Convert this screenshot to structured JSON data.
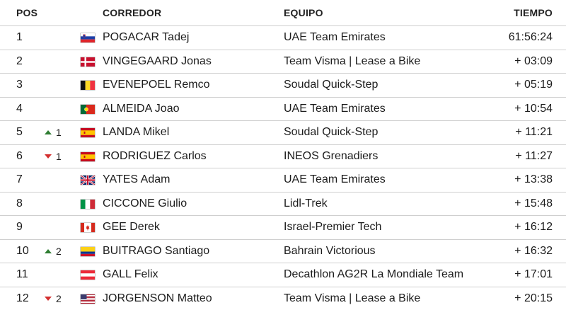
{
  "headers": {
    "pos": "POS",
    "rider": "CORREDOR",
    "team": "EQUIPO",
    "time": "TIEMPO"
  },
  "rows": [
    {
      "pos": "1",
      "change": "",
      "change_dir": "",
      "flag": "slovenia",
      "rider": "POGACAR Tadej",
      "team": "UAE Team Emirates",
      "time": "61:56:24"
    },
    {
      "pos": "2",
      "change": "",
      "change_dir": "",
      "flag": "denmark",
      "rider": "VINGEGAARD Jonas",
      "team": "Team Visma | Lease a Bike",
      "time": "+ 03:09"
    },
    {
      "pos": "3",
      "change": "",
      "change_dir": "",
      "flag": "belgium",
      "rider": "EVENEPOEL Remco",
      "team": "Soudal Quick-Step",
      "time": "+ 05:19"
    },
    {
      "pos": "4",
      "change": "",
      "change_dir": "",
      "flag": "portugal",
      "rider": "ALMEIDA Joao",
      "team": "UAE Team Emirates",
      "time": "+ 10:54"
    },
    {
      "pos": "5",
      "change": "1",
      "change_dir": "up",
      "flag": "spain",
      "rider": "LANDA Mikel",
      "team": "Soudal Quick-Step",
      "time": "+ 11:21"
    },
    {
      "pos": "6",
      "change": "1",
      "change_dir": "down",
      "flag": "spain",
      "rider": "RODRIGUEZ Carlos",
      "team": "INEOS Grenadiers",
      "time": "+ 11:27"
    },
    {
      "pos": "7",
      "change": "",
      "change_dir": "",
      "flag": "uk",
      "rider": "YATES Adam",
      "team": "UAE Team Emirates",
      "time": "+ 13:38"
    },
    {
      "pos": "8",
      "change": "",
      "change_dir": "",
      "flag": "italy",
      "rider": "CICCONE Giulio",
      "team": "Lidl-Trek",
      "time": "+ 15:48"
    },
    {
      "pos": "9",
      "change": "",
      "change_dir": "",
      "flag": "canada",
      "rider": "GEE Derek",
      "team": "Israel-Premier Tech",
      "time": "+ 16:12"
    },
    {
      "pos": "10",
      "change": "2",
      "change_dir": "up",
      "flag": "colombia",
      "rider": "BUITRAGO Santiago",
      "team": "Bahrain Victorious",
      "time": "+ 16:32"
    },
    {
      "pos": "11",
      "change": "",
      "change_dir": "",
      "flag": "austria",
      "rider": "GALL Felix",
      "team": "Decathlon AG2R La Mondiale Team",
      "time": "+ 17:01"
    },
    {
      "pos": "12",
      "change": "2",
      "change_dir": "down",
      "flag": "usa",
      "rider": "JORGENSON Matteo",
      "team": "Team Visma | Lease a Bike",
      "time": "+ 20:15"
    }
  ],
  "colors": {
    "up": "#2e7d32",
    "down": "#d32f2f",
    "divider": "#cfcfcf"
  }
}
